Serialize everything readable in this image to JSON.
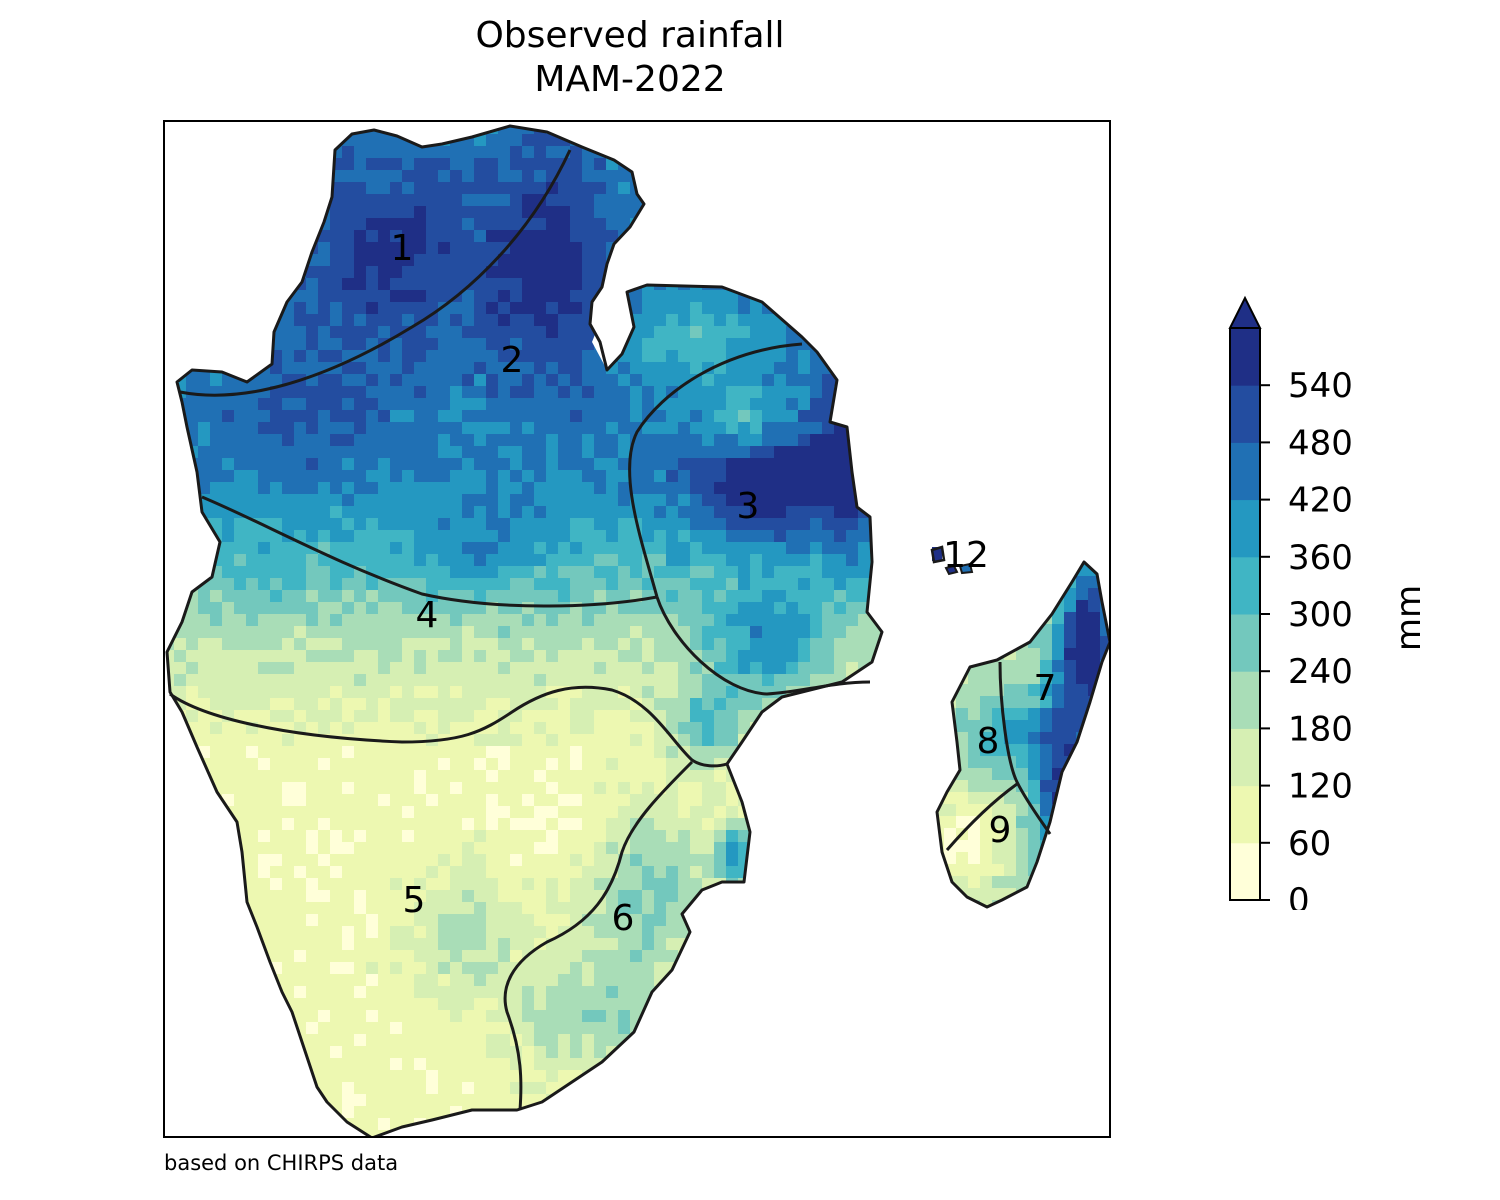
{
  "title": {
    "line1": "Observed rainfall",
    "line2": "MAM-2022"
  },
  "credit": "based on CHIRPS data",
  "colorbar": {
    "unit": "mm",
    "ticks": [
      "0",
      "60",
      "120",
      "180",
      "240",
      "300",
      "360",
      "420",
      "480",
      "540"
    ],
    "levels": [
      0,
      60,
      120,
      180,
      240,
      300,
      360,
      420,
      480,
      540,
      600
    ],
    "colors": [
      "#ffffd9",
      "#edf8b1",
      "#d6efb3",
      "#a9ddb7",
      "#73c8bd",
      "#40b5c4",
      "#2498c1",
      "#2070b4",
      "#234da0",
      "#1f2f86"
    ],
    "extend": "max"
  },
  "regions": [
    "1",
    "2",
    "3",
    "4",
    "5",
    "6",
    "7",
    "8",
    "9",
    "12"
  ],
  "map_colors": {
    "coast": "#1a1a1a",
    "ocean": "#ffffff"
  }
}
